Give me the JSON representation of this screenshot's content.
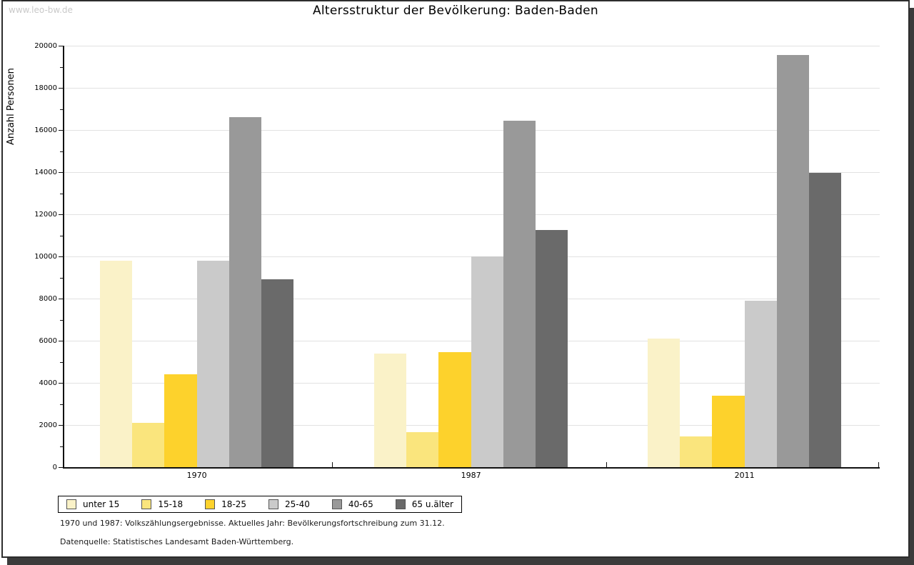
{
  "watermark": "www.leo-bw.de",
  "footnotes": [
    "1970 und 1987: Volkszählungsergebnisse. Aktuelles Jahr: Bevölkerungsfortschreibung zum 31.12.",
    "Datenquelle: Statistisches Landesamt Baden-Württemberg."
  ],
  "chart_data": {
    "type": "bar",
    "title": "Altersstruktur der Bevölkerung: Baden-Baden",
    "xlabel": "",
    "ylabel": "Anzahl Personen",
    "ylim": [
      0,
      20000
    ],
    "ytick_step": 2000,
    "yminor_step": 1000,
    "grid": true,
    "legend_position": "bottom-left",
    "categories": [
      "1970",
      "1987",
      "2011"
    ],
    "series": [
      {
        "name": "unter 15",
        "color": "#faf2c8",
        "values": [
          9800,
          5400,
          6100
        ]
      },
      {
        "name": "15-18",
        "color": "#fae57d",
        "values": [
          2100,
          1650,
          1450
        ]
      },
      {
        "name": "18-25",
        "color": "#fdd22c",
        "values": [
          4400,
          5450,
          3400
        ]
      },
      {
        "name": "25-40",
        "color": "#cacaca",
        "values": [
          9800,
          10000,
          7900
        ]
      },
      {
        "name": "40-65",
        "color": "#999999",
        "values": [
          16600,
          16450,
          19550
        ]
      },
      {
        "name": "65 u.älter",
        "color": "#6a6a6a",
        "values": [
          8900,
          11250,
          13950
        ]
      }
    ],
    "colors": {
      "axis": "#111111",
      "gridline": "#e2e2e2"
    }
  }
}
